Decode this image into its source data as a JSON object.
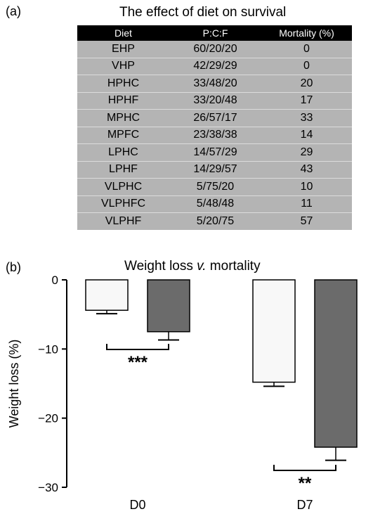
{
  "panel_a": {
    "label": "(a)",
    "title": "The effect of diet on survival",
    "columns": [
      "Diet",
      "P:C:F",
      "Mortality (%)"
    ],
    "rows": [
      [
        "EHP",
        "60/20/20",
        "0"
      ],
      [
        "VHP",
        "42/29/29",
        "0"
      ],
      [
        "HPHC",
        "33/48/20",
        "20"
      ],
      [
        "HPHF",
        "33/20/48",
        "17"
      ],
      [
        "MPHC",
        "26/57/17",
        "33"
      ],
      [
        "MPFC",
        "23/38/38",
        "14"
      ],
      [
        "LPHC",
        "14/57/29",
        "29"
      ],
      [
        "LPHF",
        "14/29/57",
        "43"
      ],
      [
        "VLPHC",
        "5/75/20",
        "10"
      ],
      [
        "VLPHFC",
        "5/48/48",
        "11"
      ],
      [
        "VLPHF",
        "5/20/75",
        "57"
      ]
    ]
  },
  "panel_b": {
    "label": "(b)",
    "title_main": "Weight loss ",
    "title_italic": "v.",
    "title_end": " mortality"
  },
  "chart_data": {
    "type": "bar",
    "categories": [
      "D0",
      "D7"
    ],
    "series": [
      {
        "values": [
          -4.4,
          -14.8
        ],
        "errors": [
          0.5,
          0.6
        ],
        "color": "#f8f8f8"
      },
      {
        "values": [
          -7.5,
          -24.2
        ],
        "errors": [
          1.2,
          1.9
        ],
        "color": "#6b6b6b"
      }
    ],
    "ylabel": "Weight loss (%)",
    "ylim": [
      -30,
      0
    ],
    "yticks": [
      0,
      -10,
      -20,
      -30
    ],
    "ytick_labels": [
      "0",
      "−10",
      "−20",
      "−30"
    ],
    "significance": [
      {
        "category": "D0",
        "label": "***"
      },
      {
        "category": "D7",
        "label": "**"
      }
    ]
  }
}
